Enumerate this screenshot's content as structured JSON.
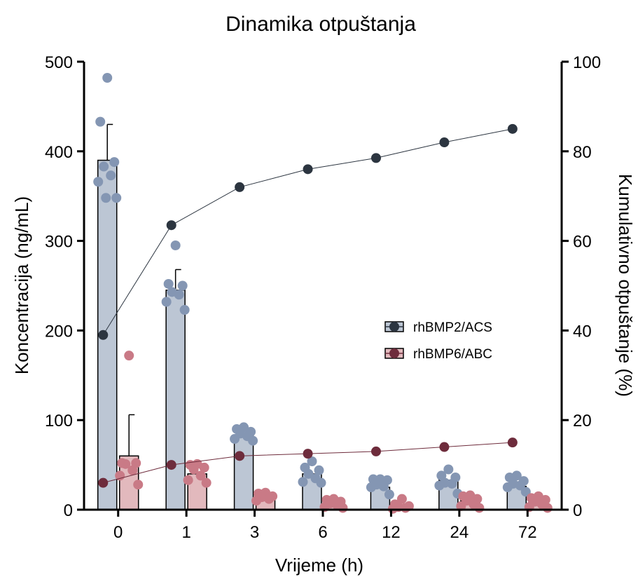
{
  "chart_data": {
    "type": "bar",
    "title": "Dinamika otpuštanja",
    "xlabel": "Vrijeme (h)",
    "ylabel": "Koncentracija (ng/mL)",
    "y2label": "Kumulativno otpuštanje (%)",
    "categories": [
      "0",
      "1",
      "3",
      "6",
      "12",
      "24",
      "72"
    ],
    "ylim": [
      0,
      500
    ],
    "yticks": [
      0,
      100,
      200,
      300,
      400,
      500
    ],
    "y2lim": [
      0,
      100
    ],
    "y2ticks": [
      0,
      20,
      40,
      60,
      80,
      100
    ],
    "legend_position": "center-right",
    "series": [
      {
        "name": "rhBMP2/ACS",
        "bar_color": "#bcc6d4",
        "dot_color": "#8496b3",
        "line_color": "#2c3540",
        "values": [
          390,
          245,
          83,
          40,
          25,
          33,
          26
        ],
        "error": [
          40,
          23,
          0,
          0,
          0,
          0,
          0
        ],
        "points": [
          [
            482,
            433,
            388,
            383,
            373,
            366,
            348,
            348
          ],
          [
            295,
            252,
            250,
            243,
            240,
            232,
            223
          ],
          [
            92,
            90,
            87,
            85,
            82,
            79,
            77
          ],
          [
            54,
            47,
            44,
            40,
            35,
            31,
            30
          ],
          [
            34,
            34,
            33,
            28,
            26,
            25,
            17
          ],
          [
            45,
            38,
            36,
            30,
            29,
            27,
            18
          ],
          [
            38,
            36,
            32,
            29,
            27,
            25,
            20
          ]
        ],
        "cumulative": [
          39,
          63.5,
          72,
          76,
          78.5,
          82,
          85
        ]
      },
      {
        "name": "rhBMP6/ABC",
        "bar_color": "#e2b9bd",
        "dot_color": "#c97a86",
        "line_color": "#6e2c3c",
        "values": [
          60,
          40,
          16,
          9,
          5,
          10,
          10
        ],
        "error": [
          46,
          0,
          0,
          0,
          0,
          0,
          0
        ],
        "points": [
          [
            172,
            52,
            52,
            51,
            44,
            38,
            28
          ],
          [
            51,
            50,
            47,
            45,
            38,
            33,
            30
          ],
          [
            19,
            18,
            15,
            14,
            12,
            10
          ],
          [
            12,
            11,
            9,
            7,
            5,
            3,
            2
          ],
          [
            12,
            6,
            4,
            3,
            2,
            1
          ],
          [
            16,
            15,
            12,
            10,
            6,
            4,
            2
          ],
          [
            15,
            13,
            11,
            9,
            6,
            3,
            2
          ]
        ],
        "cumulative": [
          6,
          10,
          12,
          12.5,
          13,
          14,
          15
        ]
      }
    ]
  }
}
